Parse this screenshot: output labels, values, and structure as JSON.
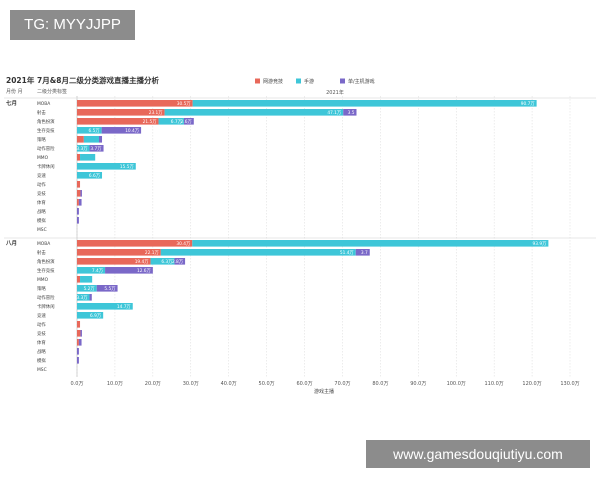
{
  "watermark_top": "TG: MYYJJPP",
  "watermark_bottom": "www.gamesdouqiutiyu.com",
  "colors": {
    "online": "#e8685a",
    "mobile": "#3ec6d8",
    "console": "#7a68c8",
    "grid": "#d9d9d9",
    "text": "#333333"
  },
  "chart_data": {
    "type": "bar",
    "title": "2021年 7月&8月二级分类游戏直播主播分析",
    "column_header": "2021年",
    "row_header_month": "月份 月",
    "row_header_category": "二级分类标签",
    "xlabel": "游戏主播",
    "xlim": [
      0,
      130
    ],
    "xticks": [
      "0.0万",
      "10.0万",
      "20.0万",
      "30.0万",
      "40.0万",
      "50.0万",
      "60.0万",
      "70.0万",
      "80.0万",
      "90.0万",
      "100.0万",
      "110.0万",
      "120.0万",
      "130.0万"
    ],
    "legend_position": "top",
    "series": [
      {
        "name": "网游竞技",
        "key": "online"
      },
      {
        "name": "手游",
        "key": "mobile"
      },
      {
        "name": "单/主机游戏",
        "key": "console"
      }
    ],
    "groups": [
      {
        "month": "七月",
        "rows": [
          {
            "category": "MOBA",
            "values": [
              30.5,
              90.7,
              0
            ],
            "labels": [
              "30.5万",
              "90.7万",
              ""
            ]
          },
          {
            "category": "射击",
            "values": [
              23.1,
              47.1,
              3.5
            ],
            "labels": [
              "23.1万",
              "47.1万",
              "3.5"
            ]
          },
          {
            "category": "角色扮演",
            "values": [
              21.5,
              6.7,
              2.6
            ],
            "labels": [
              "21.5万",
              "6.7万",
              "2.6万"
            ]
          },
          {
            "category": "生存竞技",
            "values": [
              0,
              6.5,
              10.4
            ],
            "labels": [
              "",
              "6.5万",
              "10.4万"
            ]
          },
          {
            "category": "策略",
            "values": [
              1.8,
              4.0,
              0.8
            ],
            "labels": [
              "",
              "",
              ""
            ]
          },
          {
            "category": "动作冒险",
            "values": [
              0,
              3.3,
              3.7
            ],
            "labels": [
              "",
              "3.3万",
              "3.7万"
            ]
          },
          {
            "category": "MMO",
            "values": [
              0.8,
              4.0,
              0
            ],
            "labels": [
              "",
              "",
              ""
            ]
          },
          {
            "category": "卡牌休闲",
            "values": [
              0,
              15.5,
              0
            ],
            "labels": [
              "",
              "15.5万",
              ""
            ]
          },
          {
            "category": "竞速",
            "values": [
              0,
              6.6,
              0
            ],
            "labels": [
              "",
              "6.6万",
              ""
            ]
          },
          {
            "category": "动作",
            "values": [
              0.8,
              0,
              0
            ],
            "labels": [
              "",
              "",
              ""
            ]
          },
          {
            "category": "竞技",
            "values": [
              0.9,
              0,
              0.4
            ],
            "labels": [
              "",
              "",
              ""
            ]
          },
          {
            "category": "体育",
            "values": [
              0.5,
              0,
              0.7
            ],
            "labels": [
              "",
              "",
              ""
            ]
          },
          {
            "category": "战略",
            "values": [
              0,
              0,
              0.5
            ],
            "labels": [
              "",
              "",
              ""
            ]
          },
          {
            "category": "模拟",
            "values": [
              0,
              0,
              0.5
            ],
            "labels": [
              "",
              "",
              ""
            ]
          },
          {
            "category": "MSC",
            "values": [
              0,
              0,
              0
            ],
            "labels": [
              "",
              "",
              ""
            ]
          }
        ]
      },
      {
        "month": "八月",
        "rows": [
          {
            "category": "MOBA",
            "values": [
              30.4,
              93.9,
              0
            ],
            "labels": [
              "30.4万",
              "93.9万",
              ""
            ]
          },
          {
            "category": "射击",
            "values": [
              22.1,
              51.4,
              3.7
            ],
            "labels": [
              "22.1万",
              "51.4万",
              "3.7"
            ]
          },
          {
            "category": "角色扮演",
            "values": [
              19.4,
              6.3,
              2.8
            ],
            "labels": [
              "19.4万",
              "6.3万",
              "2.8万"
            ]
          },
          {
            "category": "生存竞技",
            "values": [
              0,
              7.4,
              12.6
            ],
            "labels": [
              "",
              "7.4万",
              "12.6万"
            ]
          },
          {
            "category": "MMO",
            "values": [
              0.8,
              3.2,
              0
            ],
            "labels": [
              "",
              "",
              ""
            ]
          },
          {
            "category": "策略",
            "values": [
              0,
              5.2,
              5.5
            ],
            "labels": [
              "",
              "5.2万",
              "5.5万"
            ]
          },
          {
            "category": "动作冒险",
            "values": [
              0,
              3.3,
              0.6
            ],
            "labels": [
              "",
              "3.3万",
              ""
            ]
          },
          {
            "category": "卡牌休闲",
            "values": [
              0,
              14.7,
              0
            ],
            "labels": [
              "",
              "14.7万",
              ""
            ]
          },
          {
            "category": "竞速",
            "values": [
              0,
              6.9,
              0
            ],
            "labels": [
              "",
              "6.9万",
              ""
            ]
          },
          {
            "category": "动作",
            "values": [
              0.8,
              0,
              0
            ],
            "labels": [
              "",
              "",
              ""
            ]
          },
          {
            "category": "竞技",
            "values": [
              0.9,
              0,
              0.4
            ],
            "labels": [
              "",
              "",
              ""
            ]
          },
          {
            "category": "体育",
            "values": [
              0.5,
              0,
              0.7
            ],
            "labels": [
              "",
              "",
              ""
            ]
          },
          {
            "category": "战略",
            "values": [
              0,
              0,
              0.5
            ],
            "labels": [
              "",
              "",
              ""
            ]
          },
          {
            "category": "模拟",
            "values": [
              0,
              0,
              0.5
            ],
            "labels": [
              "",
              "",
              ""
            ]
          },
          {
            "category": "MSC",
            "values": [
              0,
              0,
              0
            ],
            "labels": [
              "",
              "",
              ""
            ]
          }
        ]
      }
    ]
  }
}
